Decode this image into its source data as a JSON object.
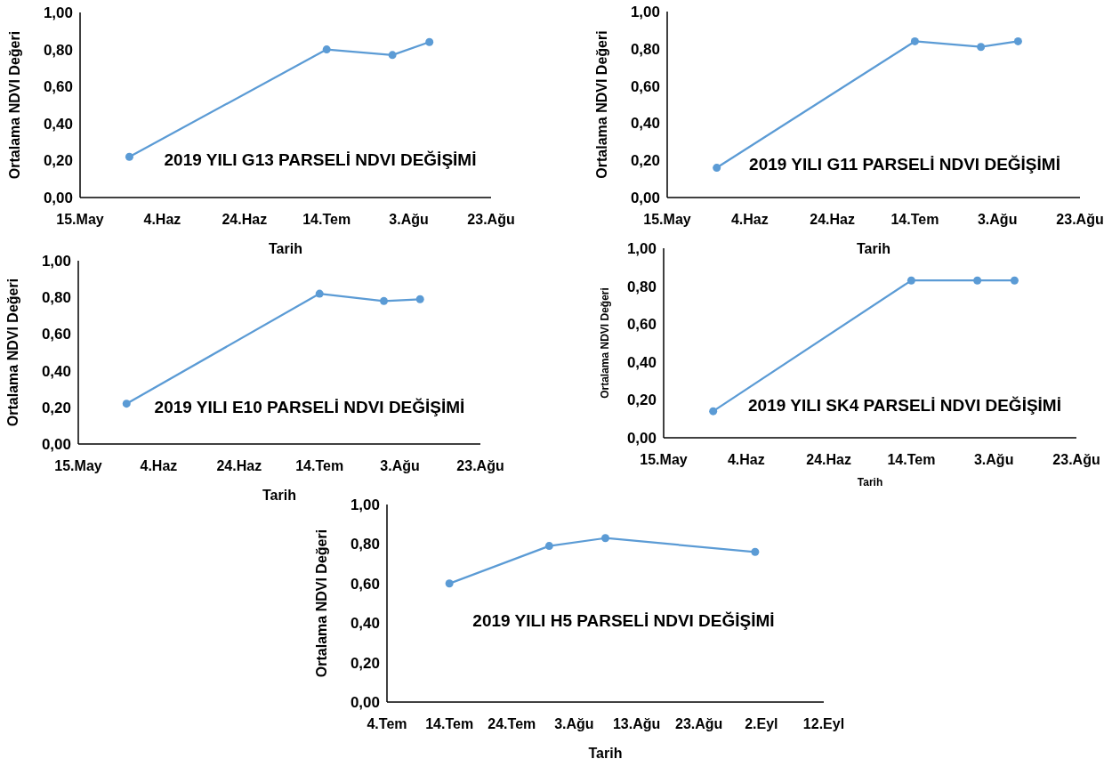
{
  "chart_data": [
    {
      "type": "line",
      "title": "2019 YILI G13 PARSELİ NDVI DEĞİŞİMİ",
      "xlabel": "Tarih",
      "ylabel": "Ortalama NDVI Değeri",
      "x": [
        "2019-05-27",
        "2019-07-14",
        "2019-07-30",
        "2019-08-08"
      ],
      "series": [
        {
          "color": "#5b9bd5",
          "values": [
            0.22,
            0.8,
            0.77,
            0.84
          ]
        }
      ],
      "marker": "circle",
      "xlim": [
        "2019-05-15",
        "2019-08-23"
      ],
      "xticks": [
        {
          "value": "2019-05-15",
          "label": "15.May"
        },
        {
          "value": "2019-06-04",
          "label": "4.Haz"
        },
        {
          "value": "2019-06-24",
          "label": "24.Haz"
        },
        {
          "value": "2019-07-14",
          "label": "14.Tem"
        },
        {
          "value": "2019-08-03",
          "label": "3.Ağu"
        },
        {
          "value": "2019-08-23",
          "label": "23.Ağu"
        }
      ],
      "ylim": [
        0,
        1
      ],
      "yticks": [
        {
          "value": 0,
          "label": "0,00"
        },
        {
          "value": 0.2,
          "label": "0,20"
        },
        {
          "value": 0.4,
          "label": "0,40"
        },
        {
          "value": 0.6,
          "label": "0,60"
        },
        {
          "value": 0.8,
          "label": "0,80"
        },
        {
          "value": 1,
          "label": "1,00"
        }
      ]
    },
    {
      "type": "line",
      "title": "2019 YILI G11 PARSELİ NDVI DEĞİŞİMİ",
      "xlabel": "Tarih",
      "ylabel": "Ortalama NDVI Değeri",
      "x": [
        "2019-05-27",
        "2019-07-14",
        "2019-07-30",
        "2019-08-08"
      ],
      "series": [
        {
          "color": "#5b9bd5",
          "values": [
            0.16,
            0.84,
            0.81,
            0.84
          ]
        }
      ],
      "marker": "circle",
      "xlim": [
        "2019-05-15",
        "2019-08-23"
      ],
      "xticks": [
        {
          "value": "2019-05-15",
          "label": "15.May"
        },
        {
          "value": "2019-06-04",
          "label": "4.Haz"
        },
        {
          "value": "2019-06-24",
          "label": "24.Haz"
        },
        {
          "value": "2019-07-14",
          "label": "14.Tem"
        },
        {
          "value": "2019-08-03",
          "label": "3.Ağu"
        },
        {
          "value": "2019-08-23",
          "label": "23.Ağu"
        }
      ],
      "ylim": [
        0,
        1
      ],
      "yticks": [
        {
          "value": 0,
          "label": "0,00"
        },
        {
          "value": 0.2,
          "label": "0,20"
        },
        {
          "value": 0.4,
          "label": "0,40"
        },
        {
          "value": 0.6,
          "label": "0,60"
        },
        {
          "value": 0.8,
          "label": "0,80"
        },
        {
          "value": 1,
          "label": "1,00"
        }
      ]
    },
    {
      "type": "line",
      "title": "2019 YILI E10 PARSELİ NDVI DEĞİŞİMİ",
      "xlabel": "Tarih",
      "ylabel": "Ortalama NDVI Değeri",
      "x": [
        "2019-05-27",
        "2019-07-14",
        "2019-07-30",
        "2019-08-08"
      ],
      "series": [
        {
          "color": "#5b9bd5",
          "values": [
            0.22,
            0.82,
            0.78,
            0.79
          ]
        }
      ],
      "marker": "circle",
      "xlim": [
        "2019-05-15",
        "2019-08-23"
      ],
      "xticks": [
        {
          "value": "2019-05-15",
          "label": "15.May"
        },
        {
          "value": "2019-06-04",
          "label": "4.Haz"
        },
        {
          "value": "2019-06-24",
          "label": "24.Haz"
        },
        {
          "value": "2019-07-14",
          "label": "14.Tem"
        },
        {
          "value": "2019-08-03",
          "label": "3.Ağu"
        },
        {
          "value": "2019-08-23",
          "label": "23.Ağu"
        }
      ],
      "ylim": [
        0,
        1
      ],
      "yticks": [
        {
          "value": 0,
          "label": "0,00"
        },
        {
          "value": 0.2,
          "label": "0,20"
        },
        {
          "value": 0.4,
          "label": "0,40"
        },
        {
          "value": 0.6,
          "label": "0,60"
        },
        {
          "value": 0.8,
          "label": "0,80"
        },
        {
          "value": 1,
          "label": "1,00"
        }
      ]
    },
    {
      "type": "line",
      "title": "2019 YILI SK4 PARSELİ NDVI DEĞİŞİMİ",
      "xlabel": "Tarih",
      "ylabel": "Ortalama NDVI Değeri",
      "x": [
        "2019-05-27",
        "2019-07-14",
        "2019-07-30",
        "2019-08-08"
      ],
      "series": [
        {
          "color": "#5b9bd5",
          "values": [
            0.14,
            0.83,
            0.83,
            0.83
          ]
        }
      ],
      "marker": "circle",
      "xlim": [
        "2019-05-15",
        "2019-08-23"
      ],
      "xticks": [
        {
          "value": "2019-05-15",
          "label": "15.May"
        },
        {
          "value": "2019-06-04",
          "label": "4.Haz"
        },
        {
          "value": "2019-06-24",
          "label": "24.Haz"
        },
        {
          "value": "2019-07-14",
          "label": "14.Tem"
        },
        {
          "value": "2019-08-03",
          "label": "3.Ağu"
        },
        {
          "value": "2019-08-23",
          "label": "23.Ağu"
        }
      ],
      "ylim": [
        0,
        1
      ],
      "yticks": [
        {
          "value": 0,
          "label": "0,00"
        },
        {
          "value": 0.2,
          "label": "0,20"
        },
        {
          "value": 0.4,
          "label": "0,40"
        },
        {
          "value": 0.6,
          "label": "0,60"
        },
        {
          "value": 0.8,
          "label": "0,80"
        },
        {
          "value": 1,
          "label": "1,00"
        }
      ]
    },
    {
      "type": "line",
      "title": "2019 YILI H5 PARSELİ NDVI DEĞİŞİMİ",
      "xlabel": "Tarih",
      "ylabel": "Ortalama NDVI Değeri",
      "x": [
        "2019-07-14",
        "2019-07-30",
        "2019-08-08",
        "2019-09-01"
      ],
      "series": [
        {
          "color": "#5b9bd5",
          "values": [
            0.6,
            0.79,
            0.83,
            0.76
          ]
        }
      ],
      "marker": "circle",
      "xlim": [
        "2019-07-04",
        "2019-09-12"
      ],
      "xticks": [
        {
          "value": "2019-07-04",
          "label": "4.Tem"
        },
        {
          "value": "2019-07-14",
          "label": "14.Tem"
        },
        {
          "value": "2019-07-24",
          "label": "24.Tem"
        },
        {
          "value": "2019-08-03",
          "label": "3.Ağu"
        },
        {
          "value": "2019-08-13",
          "label": "13.Ağu"
        },
        {
          "value": "2019-08-23",
          "label": "23.Ağu"
        },
        {
          "value": "2019-09-02",
          "label": "2.Eyl"
        },
        {
          "value": "2019-09-12",
          "label": "12.Eyl"
        }
      ],
      "ylim": [
        0,
        1
      ],
      "yticks": [
        {
          "value": 0,
          "label": "0,00"
        },
        {
          "value": 0.2,
          "label": "0,20"
        },
        {
          "value": 0.4,
          "label": "0,40"
        },
        {
          "value": 0.6,
          "label": "0,60"
        },
        {
          "value": 0.8,
          "label": "0,80"
        },
        {
          "value": 1,
          "label": "1,00"
        }
      ]
    }
  ]
}
